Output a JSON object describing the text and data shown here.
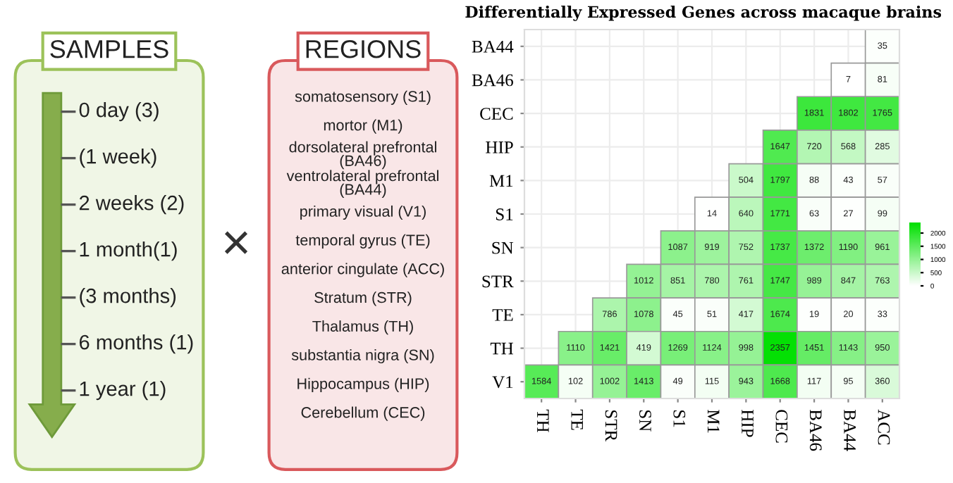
{
  "chart_data": [
    {
      "type": "other",
      "title": "SAMPLES",
      "color": "#9cc25a",
      "annotations": [
        "0 day (3)",
        "(1 week)",
        "2 weeks (2)",
        "1 month(1)",
        "(3 months)",
        "6 months (1)",
        "1 year (1)"
      ]
    },
    {
      "type": "other",
      "annotations": [
        "×"
      ]
    },
    {
      "type": "other",
      "title": "REGIONS",
      "color": "#d9595c",
      "annotations": [
        "somatosensory (S1)",
        "mortor (M1)",
        "dorsolateral prefrontal\n(BA46)",
        "ventrolateral prefrontal\n(BA44)",
        "primary visual (V1)",
        "temporal gyrus (TE)",
        "anterior cingulate (ACC)",
        "Stratum (STR)",
        "Thalamus (TH)",
        "substantia nigra (SN)",
        "Hippocampus (HIP)",
        "Cerebellum (CEC)"
      ]
    },
    {
      "type": "heatmap",
      "title": "Differentially Expressed Genes across macaque brains",
      "categories": [
        "TH",
        "TE",
        "STR",
        "SN",
        "S1",
        "M1",
        "HIP",
        "CEC",
        "BA46",
        "BA44",
        "ACC"
      ],
      "y_categories": [
        "BA44",
        "BA46",
        "CEC",
        "HIP",
        "M1",
        "S1",
        "SN",
        "STR",
        "TE",
        "TH",
        "V1"
      ],
      "cells": [
        [
          null,
          null,
          null,
          null,
          null,
          null,
          null,
          null,
          null,
          null,
          35
        ],
        [
          null,
          null,
          null,
          null,
          null,
          null,
          null,
          null,
          null,
          7,
          81
        ],
        [
          null,
          null,
          null,
          null,
          null,
          null,
          null,
          null,
          1831,
          1802,
          1765
        ],
        [
          null,
          null,
          null,
          null,
          null,
          null,
          null,
          1647,
          720,
          568,
          285
        ],
        [
          null,
          null,
          null,
          null,
          null,
          null,
          504,
          1797,
          88,
          43,
          57
        ],
        [
          null,
          null,
          null,
          null,
          null,
          14,
          640,
          1771,
          63,
          27,
          99
        ],
        [
          null,
          null,
          null,
          null,
          1087,
          919,
          752,
          1737,
          1372,
          1190,
          961
        ],
        [
          null,
          null,
          null,
          1012,
          851,
          780,
          761,
          1747,
          989,
          847,
          763
        ],
        [
          null,
          null,
          786,
          1078,
          45,
          51,
          417,
          1674,
          19,
          20,
          33
        ],
        [
          null,
          1110,
          1421,
          419,
          1269,
          1124,
          998,
          2357,
          1451,
          1143,
          950
        ],
        [
          1584,
          102,
          1002,
          1413,
          49,
          115,
          943,
          1668,
          117,
          95,
          360
        ]
      ],
      "data_labels": true,
      "grid": true,
      "color": "#00e000",
      "clim": [
        0,
        2400
      ],
      "cticks": [
        0,
        500,
        1000,
        1500,
        2000
      ]
    }
  ]
}
